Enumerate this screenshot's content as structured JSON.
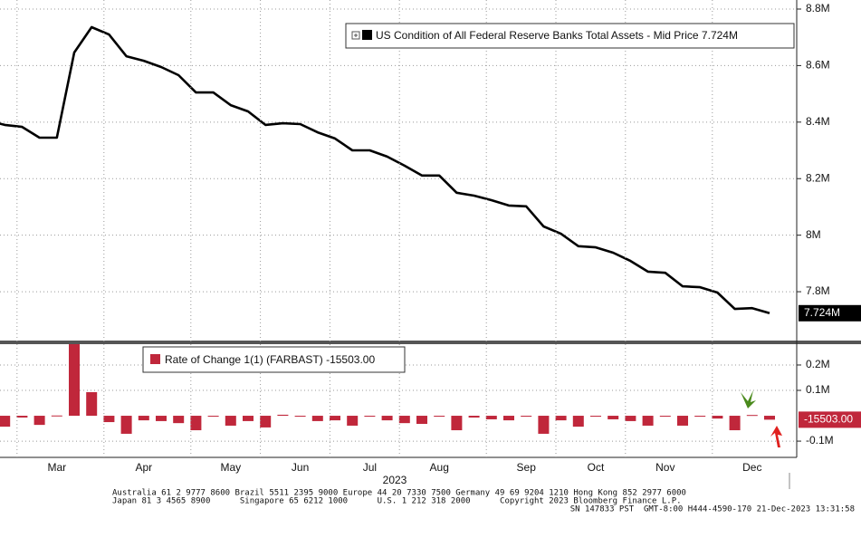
{
  "chart_data": [
    {
      "type": "line",
      "series": [
        {
          "name": "US Condition of All Federal Reserve Banks Total Assets - Mid Price 7.724M",
          "color": "#000000",
          "values": [
            8406000,
            8390000,
            8383000,
            8345000,
            8345000,
            8646000,
            8736000,
            8710000,
            8633000,
            8617000,
            8595000,
            8566000,
            8505000,
            8505000,
            8460000,
            8438000,
            8390000,
            8396000,
            8393000,
            8364000,
            8342000,
            8300000,
            8300000,
            8278000,
            8246000,
            8211000,
            8211000,
            8150000,
            8140000,
            8124000,
            8105000,
            8102000,
            8031000,
            8005000,
            7961000,
            7957000,
            7938000,
            7909000,
            7871000,
            7867000,
            7819000,
            7816000,
            7797000,
            7739000,
            7742000,
            7724000
          ],
          "last_value_label": "7.724M"
        }
      ],
      "ylim": [
        7624000,
        8832000
      ],
      "yticks": [
        {
          "value": 7800000,
          "label": "7.8M"
        },
        {
          "value": 8000000,
          "label": "8M"
        },
        {
          "value": 8200000,
          "label": "8.2M"
        },
        {
          "value": 8400000,
          "label": "8.4M"
        },
        {
          "value": 8600000,
          "label": "8.6M"
        },
        {
          "value": 8800000,
          "label": "8.8M"
        }
      ],
      "grid": true
    },
    {
      "type": "bar",
      "categories": [
        null,
        null,
        null,
        null,
        "Mar",
        null,
        null,
        null,
        null,
        "Apr",
        null,
        null,
        null,
        null,
        "May",
        null,
        null,
        null,
        "Jun",
        null,
        null,
        null,
        "Jul",
        null,
        null,
        null,
        "Aug",
        null,
        null,
        null,
        null,
        "Sep",
        null,
        null,
        null,
        "Oct",
        null,
        null,
        null,
        "Nov",
        null,
        null,
        null,
        null,
        "Dec",
        null
      ],
      "series": [
        {
          "name": "Rate of Change 1(1) (FARBAST) -15503.00",
          "color": "#c0273b",
          "values": [
            null,
            -43000,
            -7000,
            -36000,
            1000,
            300000,
            93000,
            -25000,
            -71000,
            -18000,
            -21000,
            -29000,
            -57000,
            -1000,
            -39000,
            -21000,
            -46000,
            4000,
            -2000,
            -21000,
            -18000,
            -39000,
            -1000,
            -18000,
            -29000,
            -32000,
            -1000,
            -57000,
            -7000,
            -14000,
            -18000,
            -1000,
            -71000,
            -18000,
            -43000,
            -2000,
            -14000,
            -21000,
            -39000,
            -3000,
            -39000,
            -2000,
            -11000,
            -57000,
            3000,
            -15503
          ],
          "last_value_label": "-15503.00"
        }
      ],
      "ylim": [
        -164000,
        282000
      ],
      "yticks": [
        {
          "value": -100000,
          "label": "-0.1M"
        },
        {
          "value": 100000,
          "label": "0.1M"
        },
        {
          "value": 200000,
          "label": "0.2M"
        }
      ],
      "x_label": "2023",
      "grid": true
    }
  ],
  "footer": [
    "Australia 61 2 9777 8600 Brazil 5511 2395 9000 Europe 44 20 7330 7500 Germany 49 69 9204 1210 Hong Kong 852 2977 6000",
    "Japan 81 3 4565 8900      Singapore 65 6212 1000      U.S. 1 212 318 2000      Copyright 2023 Bloomberg Finance L.P.",
    "SN 147833 PST  GMT-8:00 H444-4590-170 21-Dec-2023 13:31:58"
  ]
}
